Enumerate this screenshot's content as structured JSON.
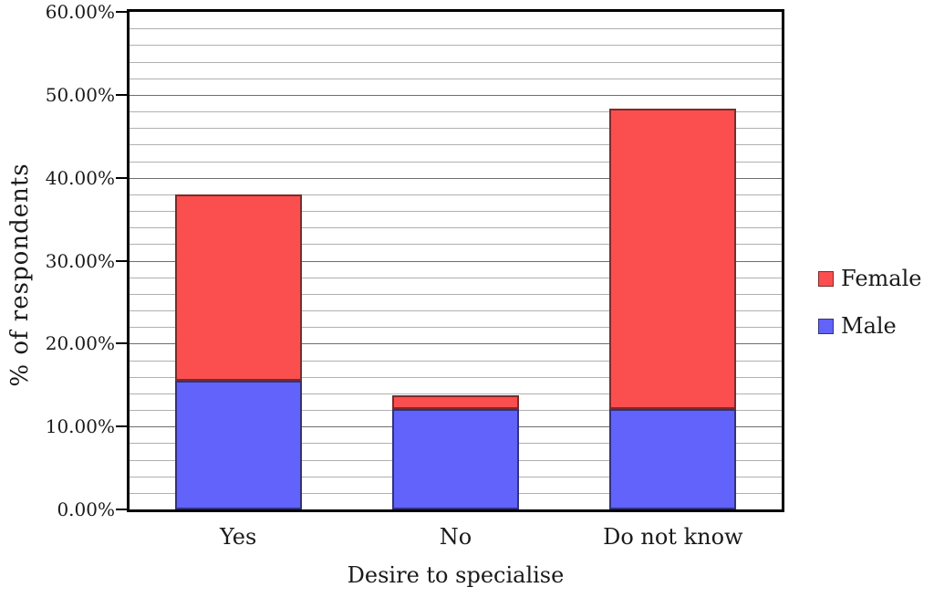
{
  "chart_data": {
    "type": "bar",
    "stacked": true,
    "title": "",
    "xlabel": "Desire to specialise",
    "ylabel": "% of respondents",
    "categories": [
      "Yes",
      "No",
      "Do not know"
    ],
    "series": [
      {
        "name": "Male",
        "color": "#6163fb",
        "border_color": "#32327d",
        "values": [
          15.52,
          12.07,
          12.07
        ]
      },
      {
        "name": "Female",
        "color": "#fb4f4f",
        "border_color": "#7d2a2a",
        "values": [
          22.41,
          1.72,
          36.21
        ]
      }
    ],
    "stack_totals": [
      37.93,
      13.79,
      48.28
    ],
    "ylim": [
      0,
      60
    ],
    "ymajor_step": 10,
    "yminor_step": 2,
    "ytick_labels": [
      "0.00%",
      "10.00%",
      "20.00%",
      "30.00%",
      "40.00%",
      "50.00%",
      "60.00%"
    ],
    "grid": true,
    "legend": {
      "position": "right",
      "order": [
        "Female",
        "Male"
      ]
    },
    "frame_color": "#000000",
    "minor_grid_color": "#b0b0b0",
    "major_grid_color": "#6e6e6e"
  }
}
